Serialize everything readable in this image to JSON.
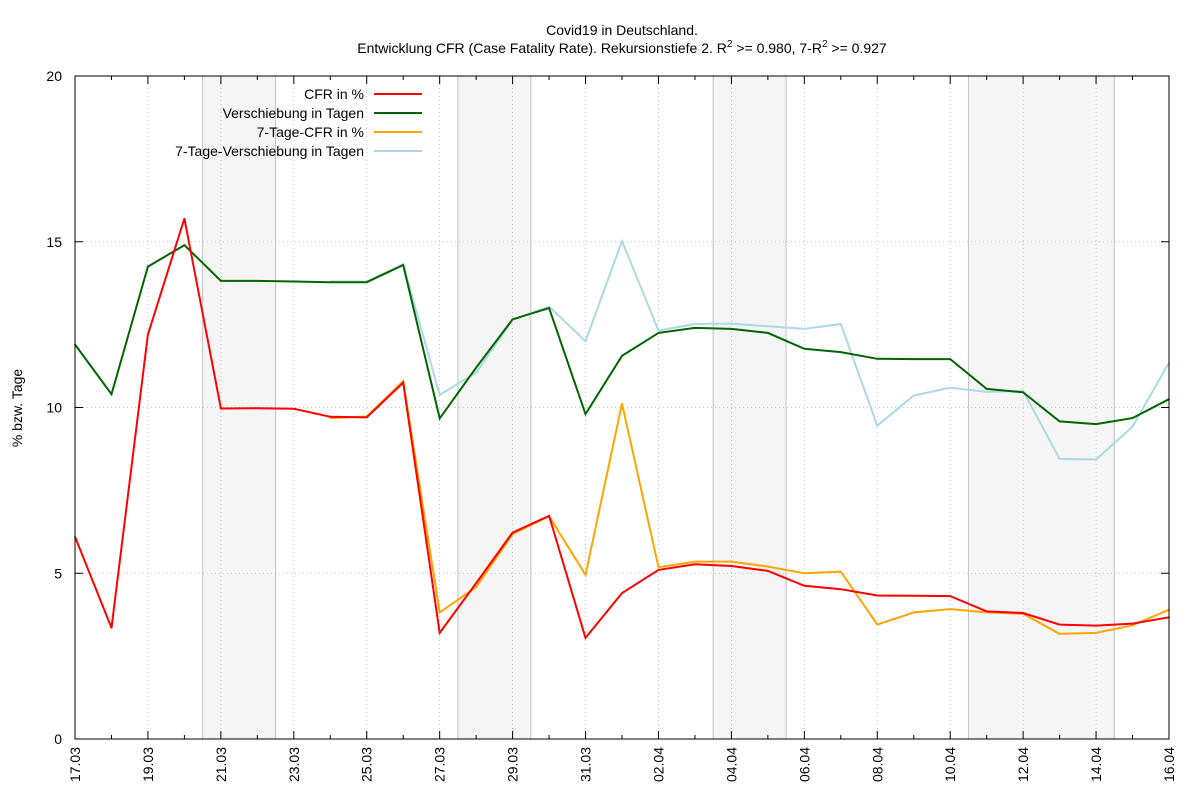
{
  "chart_data": {
    "type": "line",
    "title_line1": "Covid19 in Deutschland.",
    "title_line2_pre": "Entwicklung CFR (Case Fatality Rate). Rekursionstiefe 2. R",
    "title_line2_mid": " >= 0.980, 7-R",
    "title_line2_post": " >= 0.927",
    "title_superscript": "2",
    "ylabel": "% bzw. Tage",
    "xlabel": "",
    "ylim": [
      0,
      20
    ],
    "y_ticks": [
      0,
      5,
      10,
      15,
      20
    ],
    "x_start_date": "17.03",
    "x_labels": [
      "17.03",
      "19.03",
      "21.03",
      "23.03",
      "25.03",
      "27.03",
      "29.03",
      "31.03",
      "02.04",
      "04.04",
      "06.04",
      "08.04",
      "10.04",
      "12.04",
      "14.04",
      "16.04"
    ],
    "weekend_bands": [
      [
        20.5,
        22.5
      ],
      [
        27.5,
        29.5
      ],
      [
        34.5,
        36.5
      ],
      [
        41.5,
        45.5
      ]
    ],
    "grid": true,
    "legend_position": "top-left",
    "series": [
      {
        "name": "CFR in %",
        "color": "#ff0000",
        "points": [
          [
            17,
            6.1
          ],
          [
            18,
            3.35
          ],
          [
            19,
            12.2
          ],
          [
            20,
            15.7
          ],
          [
            21,
            9.97
          ],
          [
            22,
            9.98
          ],
          [
            23,
            9.96
          ],
          [
            24,
            9.72
          ],
          [
            25,
            9.7
          ],
          [
            26,
            10.75
          ],
          [
            27,
            3.2
          ],
          [
            28,
            4.7
          ],
          [
            29,
            6.23
          ],
          [
            30,
            6.73
          ],
          [
            31,
            3.05
          ],
          [
            32,
            4.4
          ],
          [
            33,
            5.1
          ],
          [
            34,
            5.27
          ],
          [
            35,
            5.22
          ],
          [
            36,
            5.07
          ],
          [
            37,
            4.62
          ],
          [
            38,
            4.52
          ],
          [
            39,
            4.33
          ],
          [
            40,
            4.32
          ],
          [
            41,
            4.31
          ],
          [
            42,
            3.85
          ],
          [
            43,
            3.8
          ],
          [
            44,
            3.45
          ],
          [
            45,
            3.42
          ],
          [
            46,
            3.48
          ],
          [
            47,
            3.67
          ]
        ]
      },
      {
        "name": "Verschiebung in Tagen",
        "color": "#006400",
        "points": [
          [
            17,
            11.9
          ],
          [
            18,
            10.4
          ],
          [
            19,
            14.25
          ],
          [
            20,
            14.9
          ],
          [
            21,
            13.82
          ],
          [
            22,
            13.82
          ],
          [
            23,
            13.8
          ],
          [
            24,
            13.78
          ],
          [
            25,
            13.78
          ],
          [
            26,
            14.3
          ],
          [
            27,
            9.67
          ],
          [
            28,
            11.2
          ],
          [
            29,
            12.66
          ],
          [
            30,
            13.0
          ],
          [
            31,
            9.8
          ],
          [
            32,
            11.56
          ],
          [
            33,
            12.25
          ],
          [
            34,
            12.4
          ],
          [
            35,
            12.37
          ],
          [
            36,
            12.25
          ],
          [
            37,
            11.77
          ],
          [
            38,
            11.67
          ],
          [
            39,
            11.47
          ],
          [
            40,
            11.46
          ],
          [
            41,
            11.46
          ],
          [
            42,
            10.56
          ],
          [
            43,
            10.46
          ],
          [
            44,
            9.58
          ],
          [
            45,
            9.5
          ],
          [
            46,
            9.68
          ],
          [
            47,
            10.25
          ]
        ]
      },
      {
        "name": "7-Tage-CFR in %",
        "color": "#ffa500",
        "points": [
          [
            24,
            9.68
          ],
          [
            25,
            9.73
          ],
          [
            26,
            10.8
          ],
          [
            27,
            3.82
          ],
          [
            28,
            4.58
          ],
          [
            29,
            6.18
          ],
          [
            30,
            6.72
          ],
          [
            31,
            4.95
          ],
          [
            32,
            10.12
          ],
          [
            33,
            5.18
          ],
          [
            34,
            5.35
          ],
          [
            35,
            5.35
          ],
          [
            36,
            5.2
          ],
          [
            37,
            5.0
          ],
          [
            38,
            5.05
          ],
          [
            39,
            3.45
          ],
          [
            40,
            3.82
          ],
          [
            41,
            3.92
          ],
          [
            42,
            3.82
          ],
          [
            43,
            3.78
          ],
          [
            44,
            3.17
          ],
          [
            45,
            3.2
          ],
          [
            46,
            3.43
          ],
          [
            47,
            3.9
          ]
        ]
      },
      {
        "name": "7-Tage-Verschiebung in Tagen",
        "color": "#add8e6",
        "points": [
          [
            24,
            13.8
          ],
          [
            25,
            13.8
          ],
          [
            26,
            14.32
          ],
          [
            27,
            10.38
          ],
          [
            28,
            11.05
          ],
          [
            29,
            12.65
          ],
          [
            30,
            13.04
          ],
          [
            31,
            12.0
          ],
          [
            32,
            15.02
          ],
          [
            33,
            12.32
          ],
          [
            34,
            12.52
          ],
          [
            35,
            12.53
          ],
          [
            36,
            12.45
          ],
          [
            37,
            12.37
          ],
          [
            38,
            12.52
          ],
          [
            39,
            9.45
          ],
          [
            40,
            10.36
          ],
          [
            41,
            10.6
          ],
          [
            42,
            10.47
          ],
          [
            43,
            10.5
          ],
          [
            44,
            8.45
          ],
          [
            45,
            8.43
          ],
          [
            46,
            9.42
          ],
          [
            47,
            11.35
          ]
        ]
      }
    ]
  }
}
